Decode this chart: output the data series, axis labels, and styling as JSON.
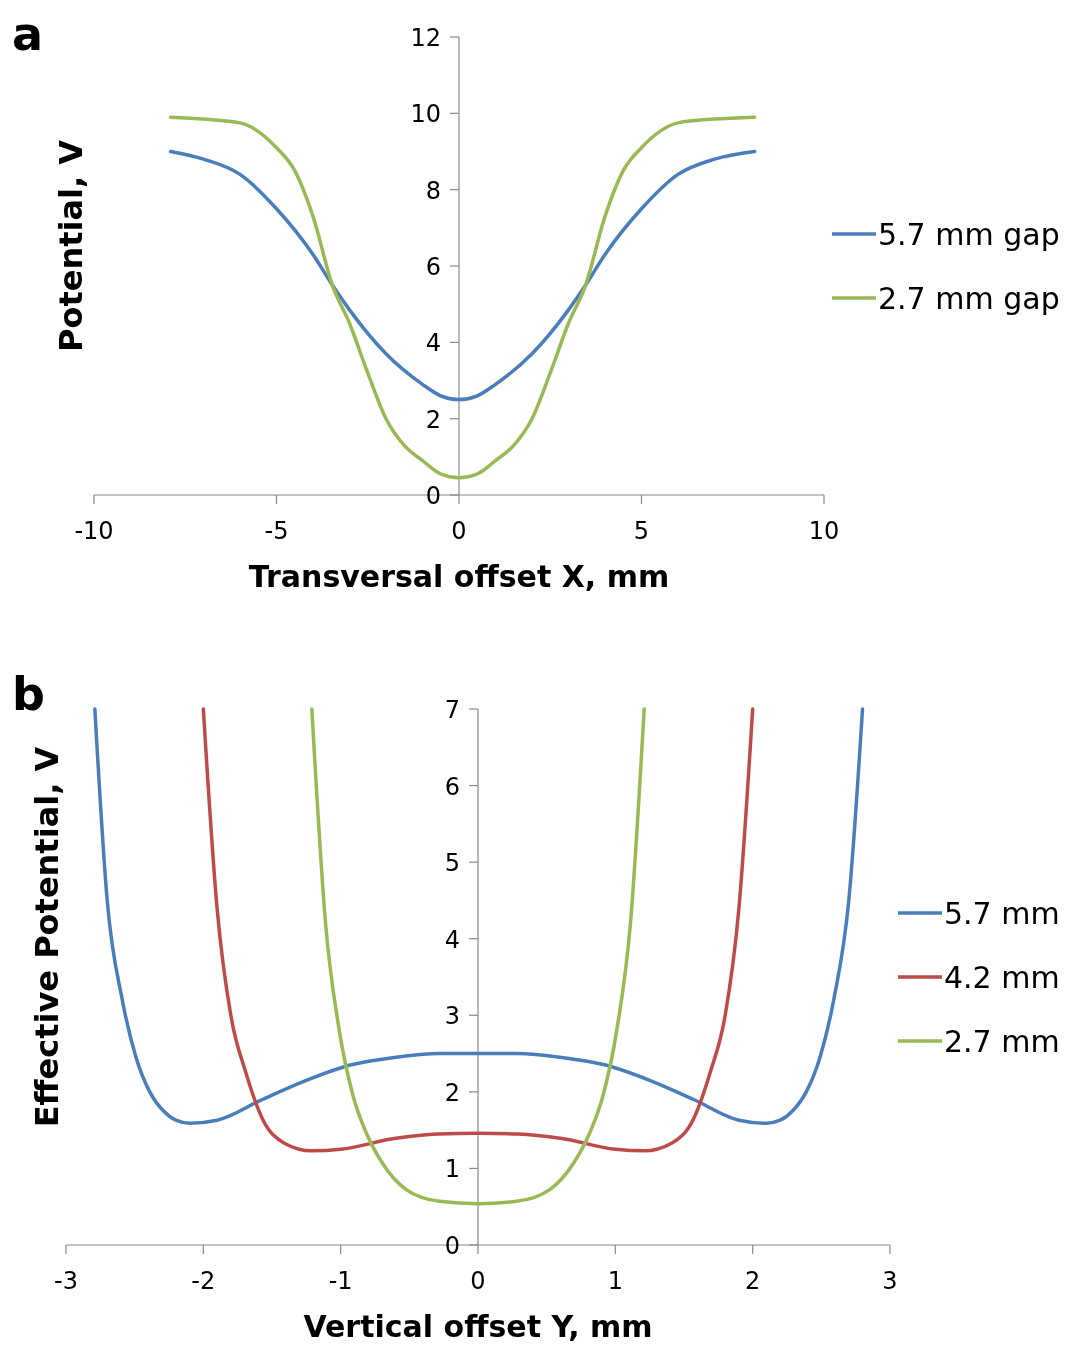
{
  "chart_data": [
    {
      "type": "line",
      "title": "a",
      "xlabel": "Transversal offset X, mm",
      "ylabel": "Potential, V",
      "xlim": [
        -10,
        10
      ],
      "xticks": [
        -10,
        -5,
        0,
        5,
        10
      ],
      "ylim": [
        0,
        12
      ],
      "yticks": [
        0,
        2,
        4,
        6,
        8,
        10,
        12
      ],
      "grid": false,
      "legend": "right",
      "marker": "none",
      "line_style": "solid",
      "series": [
        {
          "name": "5.7 mm gap",
          "color": "#4a7ebb",
          "x": [
            -7.9,
            -7,
            -6,
            -5,
            -4,
            -3.47,
            -3,
            -2,
            -1,
            -0.5,
            0,
            0.5,
            1,
            2,
            3,
            3.47,
            4,
            5,
            6,
            7,
            8.1
          ],
          "values": [
            9.0,
            8.8,
            8.4,
            7.5,
            6.3,
            5.5,
            4.85,
            3.7,
            2.9,
            2.6,
            2.5,
            2.6,
            2.9,
            3.7,
            4.85,
            5.5,
            6.3,
            7.5,
            8.4,
            8.8,
            9.0
          ]
        },
        {
          "name": "2.7 mm gap",
          "color": "#98b954",
          "x": [
            -7.9,
            -7,
            -6,
            -5,
            -4.5,
            -4,
            -3.47,
            -3,
            -2.5,
            -2,
            -1.5,
            -1,
            -0.5,
            0,
            0.5,
            1,
            1.5,
            2,
            2.5,
            3,
            3.47,
            4,
            4.5,
            5,
            6,
            7,
            8.1
          ],
          "values": [
            9.9,
            9.85,
            9.75,
            9.1,
            8.5,
            7.3,
            5.5,
            4.5,
            3.2,
            2.0,
            1.3,
            0.9,
            0.55,
            0.45,
            0.55,
            0.9,
            1.3,
            2.0,
            3.2,
            4.5,
            5.5,
            7.3,
            8.5,
            9.1,
            9.75,
            9.85,
            9.9
          ]
        }
      ]
    },
    {
      "type": "line",
      "title": "b",
      "xlabel": "Vertical offset Y, mm",
      "ylabel": "Effective Potential, V",
      "xlim": [
        -3,
        3
      ],
      "xticks": [
        -3,
        -2,
        -1,
        0,
        1,
        2,
        3
      ],
      "ylim": [
        0,
        7
      ],
      "yticks": [
        0,
        1,
        2,
        3,
        4,
        5,
        6,
        7
      ],
      "grid": false,
      "legend": "right",
      "marker": "none",
      "line_style": "solid",
      "series": [
        {
          "name": "5.7 mm",
          "color": "#4a7ebb",
          "x": [
            -2.79,
            -2.7,
            -2.59,
            -2.49,
            -2.39,
            -2.29,
            -2.2,
            -2.1,
            -1.9,
            -1.57,
            -1.25,
            -0.93,
            -0.61,
            -0.28,
            0,
            0.28,
            0.61,
            0.93,
            1.25,
            1.57,
            1.9,
            2.1,
            2.2,
            2.29,
            2.39,
            2.49,
            2.59,
            2.7,
            2.8
          ],
          "values": [
            7,
            4.5,
            3.2,
            2.45,
            2.0,
            1.75,
            1.63,
            1.59,
            1.63,
            1.9,
            2.15,
            2.35,
            2.45,
            2.5,
            2.5,
            2.5,
            2.45,
            2.35,
            2.15,
            1.9,
            1.63,
            1.59,
            1.63,
            1.75,
            2.0,
            2.45,
            3.2,
            4.5,
            7
          ]
        },
        {
          "name": "4.2 mm",
          "color": "#be4b48",
          "x": [
            -2.0,
            -1.9,
            -1.8,
            -1.69,
            -1.57,
            -1.41,
            -1.21,
            -1.0,
            -0.61,
            -0.29,
            0,
            0.29,
            0.61,
            1.0,
            1.21,
            1.41,
            1.57,
            1.69,
            1.8,
            1.9,
            2.0
          ],
          "values": [
            7,
            4.4,
            3.0,
            2.25,
            1.65,
            1.33,
            1.23,
            1.25,
            1.39,
            1.45,
            1.46,
            1.45,
            1.39,
            1.25,
            1.23,
            1.33,
            1.65,
            2.25,
            3.0,
            4.4,
            7
          ]
        },
        {
          "name": "2.7 mm",
          "color": "#98b954",
          "x": [
            -1.21,
            -1.11,
            -1.01,
            -0.91,
            -0.81,
            -0.7,
            -0.52,
            -0.28,
            0,
            0.28,
            0.52,
            0.7,
            0.81,
            0.91,
            1.01,
            1.11,
            1.21
          ],
          "values": [
            7,
            4.2,
            2.8,
            1.95,
            1.45,
            1.08,
            0.72,
            0.57,
            0.54,
            0.57,
            0.72,
            1.08,
            1.45,
            1.95,
            2.8,
            4.2,
            7
          ]
        }
      ]
    }
  ]
}
